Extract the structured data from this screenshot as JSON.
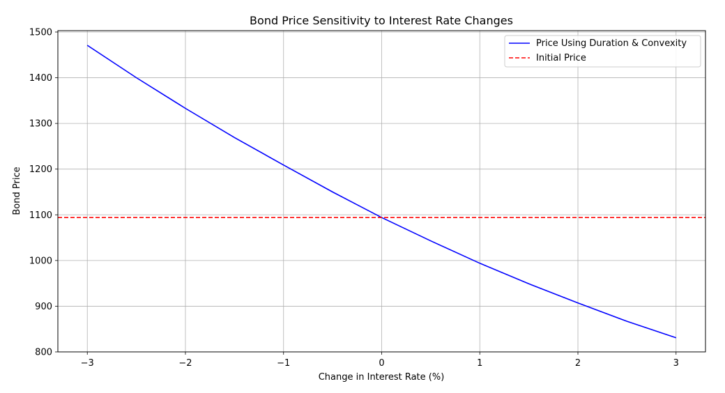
{
  "chart_data": {
    "type": "line",
    "title": "Bond Price Sensitivity to Interest Rate Changes",
    "xlabel": "Change in Interest Rate (%)",
    "ylabel": "Bond Price",
    "xlim": [
      -3.3,
      3.3
    ],
    "ylim": [
      800,
      1503
    ],
    "xticks": [
      -3,
      -2,
      -1,
      0,
      1,
      2,
      3
    ],
    "xtick_labels": [
      "−3",
      "−2",
      "−1",
      "0",
      "1",
      "2",
      "3"
    ],
    "yticks": [
      800,
      900,
      1000,
      1100,
      1200,
      1300,
      1400,
      1500
    ],
    "ytick_labels": [
      "800",
      "900",
      "1000",
      "1100",
      "1200",
      "1300",
      "1400",
      "1500"
    ],
    "grid": true,
    "legend_position": "top-right",
    "series": [
      {
        "name": "Price Using Duration & Convexity",
        "color": "#0000ff",
        "style": "solid",
        "x": [
          -3,
          -2.5,
          -2,
          -1.5,
          -1,
          -0.5,
          0,
          0.5,
          1,
          1.5,
          2,
          2.5,
          3
        ],
        "y": [
          1471,
          1400,
          1333,
          1269,
          1209,
          1150,
          1094,
          1043,
          994,
          949,
          907,
          867,
          831
        ]
      },
      {
        "name": "Initial Price",
        "color": "#ff0000",
        "style": "dashed",
        "hline": 1094
      }
    ]
  }
}
